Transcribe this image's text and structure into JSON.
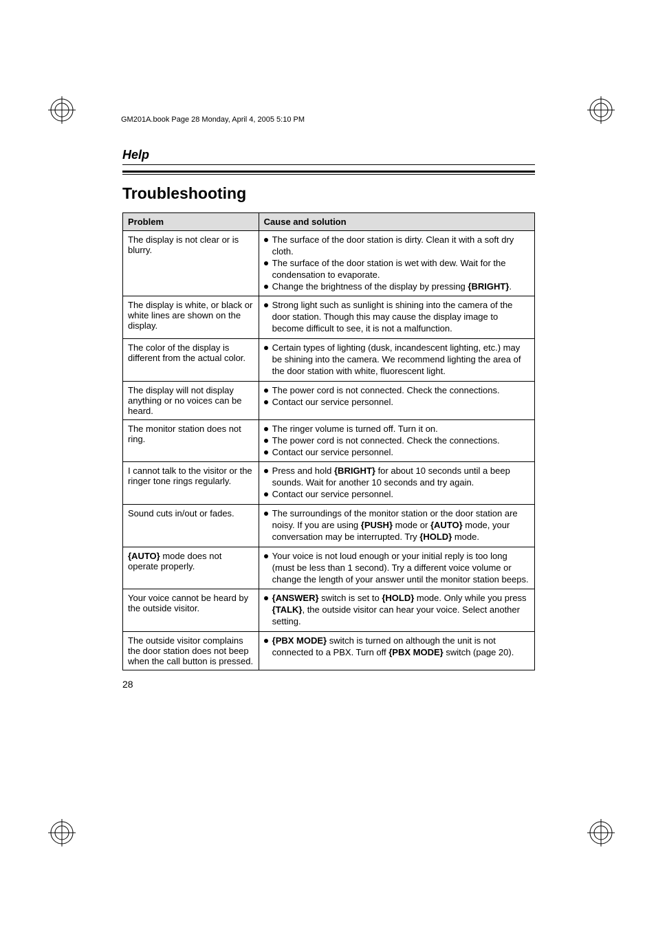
{
  "header_bar": "GM201A.book  Page 28  Monday, April 4, 2005  5:10 PM",
  "section": "Help",
  "title": "Troubleshooting",
  "page_number": "28",
  "columns": {
    "problem": "Problem",
    "cause": "Cause and solution"
  },
  "rows": [
    {
      "problem": "The display is not clear or is blurry.",
      "solutions": [
        {
          "pre": "The surface of the door station is dirty. Clean it with a soft dry cloth."
        },
        {
          "pre": "The surface of the door station is wet with dew. Wait for the condensation to evaporate."
        },
        {
          "pre": "Change the brightness of the display by pressing ",
          "kw": "{BRIGHT}",
          "post": "."
        }
      ]
    },
    {
      "problem": "The display is white, or black or white lines are shown on the display.",
      "solutions": [
        {
          "pre": "Strong light such as sunlight is shining into the camera of the door station. Though this may cause the display image to become difficult to see, it is not a malfunction."
        }
      ]
    },
    {
      "problem": "The color of the display is different from the actual color.",
      "solutions": [
        {
          "pre": "Certain types of lighting (dusk, incandescent lighting, etc.) may be shining into the camera. We recommend lighting the area of the door station with white, fluorescent light."
        }
      ]
    },
    {
      "problem": "The display will not display anything or no voices can be heard.",
      "solutions": [
        {
          "pre": "The power cord is not connected. Check the connections."
        },
        {
          "pre": "Contact our service personnel."
        }
      ]
    },
    {
      "problem": "The monitor station does not ring.",
      "solutions": [
        {
          "pre": "The ringer volume is turned off. Turn it on."
        },
        {
          "pre": "The power cord is not connected. Check the connections."
        },
        {
          "pre": "Contact our service personnel."
        }
      ]
    },
    {
      "problem": "I cannot talk to the visitor or the ringer tone rings regularly.",
      "solutions": [
        {
          "pre": "Press and hold ",
          "kw": "{BRIGHT}",
          "post": " for about 10 seconds until a beep sounds. Wait for another 10 seconds and try again."
        },
        {
          "pre": "Contact our service personnel."
        }
      ]
    },
    {
      "problem": "Sound cuts in/out or fades.",
      "solutions": [
        {
          "pre": "The surroundings of the monitor station or the door station are noisy. If you are using ",
          "kw": "{PUSH}",
          "post": " mode or ",
          "kw2": "{AUTO}",
          "post2": " mode, your conversation may be interrupted. Try ",
          "kw3": "{HOLD}",
          "post3": " mode."
        }
      ]
    },
    {
      "problem_pre": "",
      "problem_kw": "{AUTO}",
      "problem_post": " mode does not operate properly.",
      "solutions": [
        {
          "pre": "Your voice is not loud enough or your initial reply is too long (must be less than 1 second). Try a different voice volume or change the length of your answer until the monitor station beeps."
        }
      ]
    },
    {
      "problem": "Your voice cannot be heard by the outside visitor.",
      "solutions": [
        {
          "kw": "{ANSWER}",
          "post": " switch is set to ",
          "kw2": "{HOLD}",
          "post2": " mode. Only while you press ",
          "kw3": "{TALK}",
          "post3": ", the outside visitor can hear your voice. Select another setting."
        }
      ]
    },
    {
      "problem": "The outside visitor complains the door station does not beep when the call button is pressed.",
      "solutions": [
        {
          "kw": "{PBX MODE}",
          "post": " switch is turned on although the unit is not connected to a PBX. Turn off ",
          "kw2": "{PBX MODE}",
          "post2": " switch (page 20)."
        }
      ]
    }
  ]
}
